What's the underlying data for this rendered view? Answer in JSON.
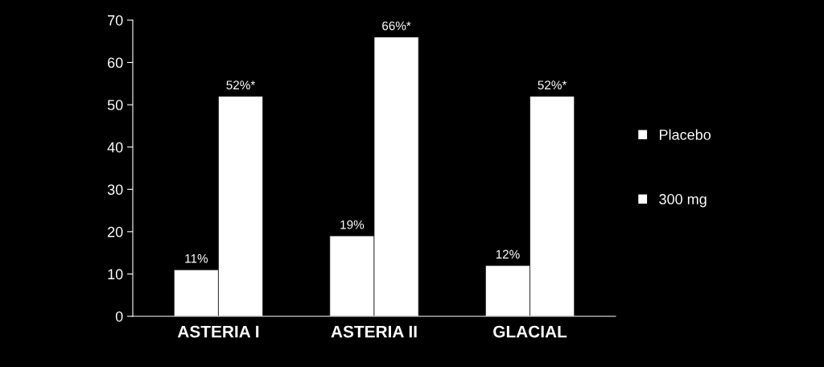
{
  "chart_data": {
    "type": "bar",
    "categories": [
      "ASTERIA I",
      "ASTERIA II",
      "GLACIAL"
    ],
    "series": [
      {
        "name": "Placebo",
        "color": "#ffffff",
        "values": [
          11,
          19,
          12
        ],
        "value_labels": [
          "11%",
          "19%",
          "12%"
        ]
      },
      {
        "name": "300 mg",
        "color": "#ffffff",
        "values": [
          52,
          66,
          52
        ],
        "value_labels": [
          "52%*",
          "66%*",
          "52%*"
        ]
      }
    ],
    "ylim": [
      0,
      70
    ],
    "yticks": [
      0,
      10,
      20,
      30,
      40,
      50,
      60,
      70
    ],
    "grid": false,
    "legend": "right"
  }
}
